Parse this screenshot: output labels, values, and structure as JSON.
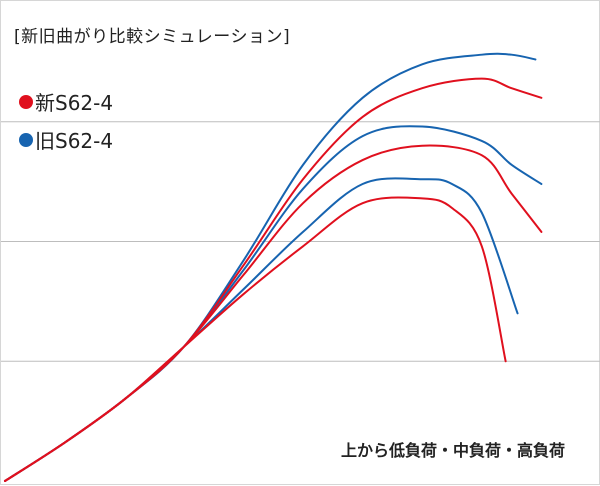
{
  "chart_data": {
    "type": "line",
    "title": "[新旧曲がり比較シミュレーション]",
    "note": "上から低負荷・中負荷・高負荷",
    "grid": true,
    "xlim": [
      0,
      100
    ],
    "ylim": [
      0,
      100
    ],
    "gridlines_y": [
      25,
      50,
      75
    ],
    "legend": [
      {
        "name": "新S62-4",
        "color": "#e0101e"
      },
      {
        "name": "旧S62-4",
        "color": "#1764b0"
      }
    ],
    "series": [
      {
        "name": "新S62-4",
        "load": "低負荷",
        "color": "#e0101e",
        "points": [
          [
            0,
            0
          ],
          [
            10,
            8
          ],
          [
            20,
            17
          ],
          [
            30,
            28
          ],
          [
            40,
            45
          ],
          [
            50,
            63
          ],
          [
            60,
            76
          ],
          [
            70,
            82
          ],
          [
            80,
            84
          ],
          [
            85,
            82
          ],
          [
            90,
            80
          ]
        ]
      },
      {
        "name": "新S62-4",
        "load": "中負荷",
        "color": "#e0101e",
        "points": [
          [
            0,
            0
          ],
          [
            10,
            8
          ],
          [
            20,
            17
          ],
          [
            30,
            28
          ],
          [
            40,
            43
          ],
          [
            50,
            58
          ],
          [
            60,
            67
          ],
          [
            70,
            70
          ],
          [
            80,
            68
          ],
          [
            85,
            60
          ],
          [
            90,
            52
          ]
        ]
      },
      {
        "name": "新S62-4",
        "load": "高負荷",
        "color": "#e0101e",
        "points": [
          [
            0,
            0
          ],
          [
            10,
            8
          ],
          [
            20,
            17
          ],
          [
            30,
            28
          ],
          [
            40,
            39
          ],
          [
            50,
            49
          ],
          [
            60,
            58
          ],
          [
            70,
            59
          ],
          [
            75,
            57
          ],
          [
            80,
            49
          ],
          [
            84,
            25
          ]
        ]
      },
      {
        "name": "旧S62-4",
        "load": "低負荷",
        "color": "#1764b0",
        "points": [
          [
            0,
            0
          ],
          [
            10,
            8
          ],
          [
            20,
            17
          ],
          [
            30,
            28
          ],
          [
            40,
            46
          ],
          [
            50,
            66
          ],
          [
            60,
            80
          ],
          [
            70,
            87
          ],
          [
            80,
            89
          ],
          [
            85,
            89
          ],
          [
            89,
            88
          ]
        ]
      },
      {
        "name": "旧S62-4",
        "load": "中負荷",
        "color": "#1764b0",
        "points": [
          [
            0,
            0
          ],
          [
            10,
            8
          ],
          [
            20,
            17
          ],
          [
            30,
            28
          ],
          [
            40,
            44
          ],
          [
            50,
            61
          ],
          [
            60,
            72
          ],
          [
            70,
            74
          ],
          [
            80,
            71
          ],
          [
            85,
            66
          ],
          [
            90,
            62
          ]
        ]
      },
      {
        "name": "旧S62-4",
        "load": "高負荷",
        "color": "#1764b0",
        "points": [
          [
            0,
            0
          ],
          [
            10,
            8
          ],
          [
            20,
            17
          ],
          [
            30,
            28
          ],
          [
            40,
            40
          ],
          [
            50,
            52
          ],
          [
            60,
            62
          ],
          [
            70,
            63
          ],
          [
            75,
            62
          ],
          [
            80,
            56
          ],
          [
            86,
            35
          ]
        ]
      }
    ]
  }
}
